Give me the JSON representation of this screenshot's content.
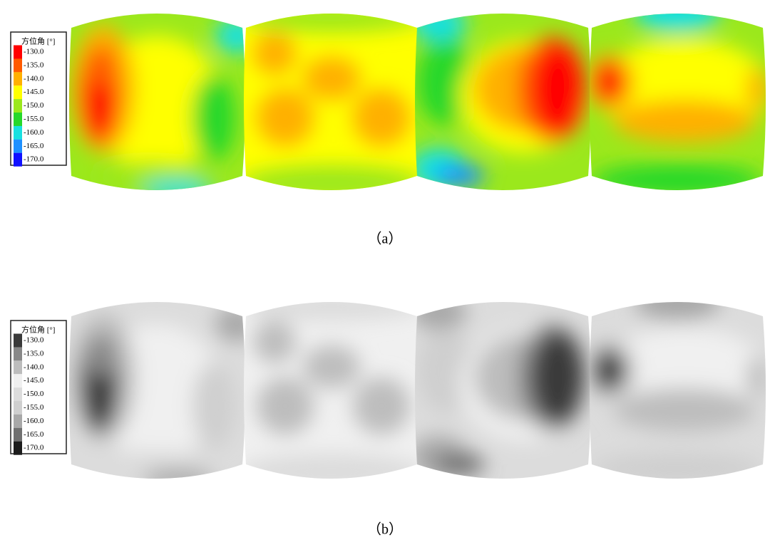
{
  "panels": [
    {
      "legend": {
        "title": "方位角 [°]",
        "labels": [
          "-130.0",
          "-135.0",
          "-140.0",
          "-145.0",
          "-150.0",
          "-155.0",
          "-160.0",
          "-165.0",
          "-170.0"
        ],
        "colors": [
          "#ff0000",
          "#ff5a00",
          "#ffb000",
          "#ffff00",
          "#9be81c",
          "#26d82a",
          "#18e0e0",
          "#1e90ff",
          "#1010ff"
        ]
      },
      "caption": "（a）"
    },
    {
      "legend": {
        "title": "方位角 [°]",
        "labels": [
          "-130.0",
          "-135.0",
          "-140.0",
          "-145.0",
          "-150.0",
          "-155.0",
          "-160.0",
          "-165.0",
          "-170.0"
        ],
        "colors": [
          "#3a3a3a",
          "#888888",
          "#bdbdbd",
          "#f0f0f0",
          "#dcdcdc",
          "#cfcfcf",
          "#a8a8a8",
          "#707070",
          "#1c1c1c"
        ]
      },
      "caption": "（b）"
    }
  ]
}
